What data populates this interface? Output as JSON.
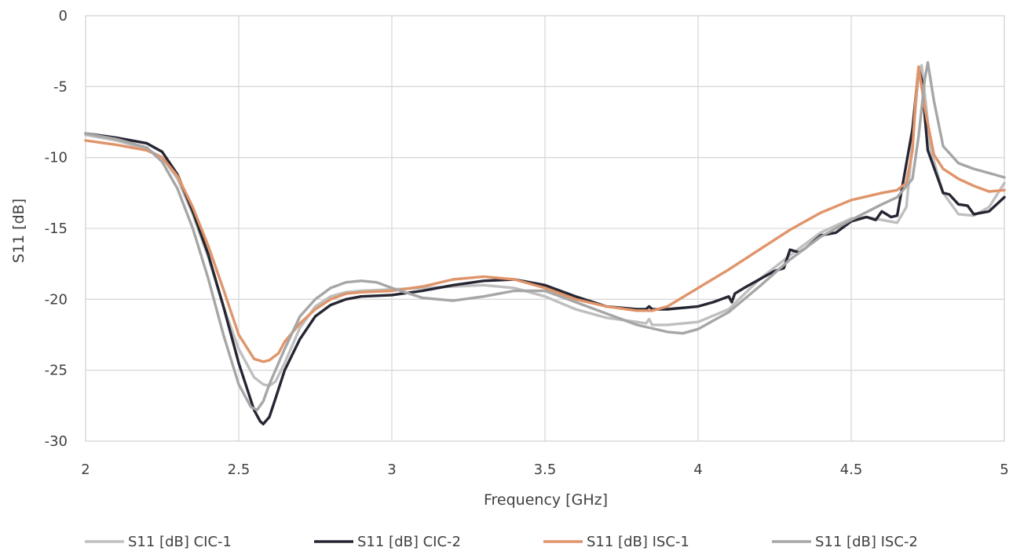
{
  "chart_data": {
    "type": "line",
    "title": "",
    "xlabel": "Frequency [GHz]",
    "ylabel": "S11 [dB]",
    "xlim": [
      2,
      5
    ],
    "ylim": [
      -30,
      0
    ],
    "x_ticks": [
      2,
      2.5,
      3,
      3.5,
      4,
      4.5,
      5
    ],
    "x_tick_labels": [
      "2",
      "2.5",
      "3",
      "3.5",
      "4",
      "4.5",
      "5"
    ],
    "y_ticks": [
      0,
      -5,
      -10,
      -15,
      -20,
      -25,
      -30
    ],
    "y_tick_labels": [
      "0",
      "-5",
      "-10",
      "-15",
      "-20",
      "-25",
      "-30"
    ],
    "grid": true,
    "legend_position": "bottom",
    "series": [
      {
        "name": "S11 [dB] CIC-1",
        "color": "#bfbfbf",
        "x": [
          2.0,
          2.1,
          2.2,
          2.25,
          2.3,
          2.35,
          2.4,
          2.45,
          2.5,
          2.55,
          2.58,
          2.6,
          2.62,
          2.65,
          2.7,
          2.75,
          2.8,
          2.85,
          2.9,
          3.0,
          3.1,
          3.2,
          3.3,
          3.4,
          3.5,
          3.6,
          3.7,
          3.8,
          3.83,
          3.84,
          3.85,
          3.9,
          4.0,
          4.1,
          4.2,
          4.3,
          4.4,
          4.5,
          4.55,
          4.6,
          4.65,
          4.68,
          4.7,
          4.72,
          4.73,
          4.74,
          4.76,
          4.8,
          4.85,
          4.9,
          4.95,
          5.0
        ],
        "y": [
          -8.4,
          -8.8,
          -9.4,
          -10.0,
          -11.5,
          -14.0,
          -17.0,
          -20.5,
          -23.5,
          -25.5,
          -26.0,
          -26.1,
          -25.8,
          -24.5,
          -22.0,
          -20.5,
          -19.8,
          -19.5,
          -19.4,
          -19.3,
          -19.2,
          -19.1,
          -19.0,
          -19.2,
          -19.8,
          -20.7,
          -21.3,
          -21.6,
          -21.7,
          -21.4,
          -21.8,
          -21.8,
          -21.6,
          -20.7,
          -18.6,
          -16.9,
          -15.3,
          -14.3,
          -14.2,
          -14.4,
          -14.6,
          -13.5,
          -9.0,
          -4.0,
          -3.5,
          -5.5,
          -9.5,
          -12.5,
          -14.0,
          -14.1,
          -13.5,
          -11.8
        ]
      },
      {
        "name": "S11 [dB] CIC-2",
        "color": "#262633",
        "x": [
          2.0,
          2.1,
          2.2,
          2.25,
          2.3,
          2.35,
          2.4,
          2.45,
          2.5,
          2.55,
          2.57,
          2.58,
          2.6,
          2.62,
          2.65,
          2.7,
          2.75,
          2.8,
          2.85,
          2.9,
          3.0,
          3.1,
          3.2,
          3.3,
          3.4,
          3.5,
          3.6,
          3.7,
          3.8,
          3.83,
          3.84,
          3.85,
          3.9,
          4.0,
          4.05,
          4.1,
          4.11,
          4.12,
          4.15,
          4.2,
          4.25,
          4.28,
          4.3,
          4.33,
          4.35,
          4.4,
          4.45,
          4.5,
          4.55,
          4.58,
          4.6,
          4.63,
          4.65,
          4.7,
          4.72,
          4.73,
          4.75,
          4.8,
          4.82,
          4.85,
          4.88,
          4.9,
          4.95,
          5.0
        ],
        "y": [
          -8.3,
          -8.6,
          -9.0,
          -9.6,
          -11.2,
          -13.8,
          -16.8,
          -20.5,
          -24.5,
          -27.8,
          -28.6,
          -28.8,
          -28.3,
          -27.0,
          -25.0,
          -22.8,
          -21.2,
          -20.4,
          -20.0,
          -19.8,
          -19.7,
          -19.4,
          -19.0,
          -18.7,
          -18.6,
          -19.0,
          -19.8,
          -20.5,
          -20.7,
          -20.7,
          -20.5,
          -20.7,
          -20.7,
          -20.5,
          -20.2,
          -19.8,
          -20.2,
          -19.6,
          -19.2,
          -18.6,
          -18.0,
          -17.8,
          -16.5,
          -16.7,
          -16.4,
          -15.5,
          -15.3,
          -14.5,
          -14.2,
          -14.4,
          -13.8,
          -14.2,
          -14.1,
          -8.0,
          -3.7,
          -4.5,
          -9.5,
          -12.5,
          -12.6,
          -13.3,
          -13.4,
          -14.0,
          -13.8,
          -12.8
        ]
      },
      {
        "name": "S11 [dB] ISC-1",
        "color": "#e0946a",
        "x": [
          2.0,
          2.1,
          2.2,
          2.25,
          2.3,
          2.35,
          2.4,
          2.45,
          2.5,
          2.55,
          2.58,
          2.6,
          2.63,
          2.65,
          2.7,
          2.75,
          2.8,
          2.85,
          2.9,
          3.0,
          3.1,
          3.2,
          3.3,
          3.4,
          3.5,
          3.6,
          3.7,
          3.8,
          3.85,
          3.9,
          4.0,
          4.1,
          4.2,
          4.3,
          4.4,
          4.5,
          4.6,
          4.65,
          4.68,
          4.7,
          4.71,
          4.72,
          4.74,
          4.77,
          4.8,
          4.85,
          4.9,
          4.95,
          5.0
        ],
        "y": [
          -8.8,
          -9.1,
          -9.5,
          -10.0,
          -11.3,
          -13.5,
          -16.2,
          -19.3,
          -22.5,
          -24.2,
          -24.4,
          -24.3,
          -23.8,
          -23.0,
          -21.7,
          -20.7,
          -20.0,
          -19.6,
          -19.5,
          -19.4,
          -19.1,
          -18.6,
          -18.4,
          -18.6,
          -19.2,
          -20.0,
          -20.5,
          -20.8,
          -20.8,
          -20.5,
          -19.2,
          -17.9,
          -16.5,
          -15.1,
          -13.9,
          -13.0,
          -12.5,
          -12.3,
          -11.8,
          -9.5,
          -6.0,
          -3.6,
          -6.5,
          -9.8,
          -10.8,
          -11.5,
          -12.0,
          -12.4,
          -12.3
        ]
      },
      {
        "name": "S11 [dB] ISC-2",
        "color": "#a6a6a6",
        "x": [
          2.0,
          2.1,
          2.2,
          2.25,
          2.3,
          2.35,
          2.4,
          2.45,
          2.5,
          2.54,
          2.56,
          2.58,
          2.6,
          2.65,
          2.7,
          2.75,
          2.8,
          2.85,
          2.9,
          2.95,
          3.0,
          3.1,
          3.2,
          3.3,
          3.4,
          3.5,
          3.6,
          3.7,
          3.8,
          3.9,
          3.95,
          4.0,
          4.05,
          4.1,
          4.2,
          4.3,
          4.4,
          4.5,
          4.6,
          4.65,
          4.7,
          4.72,
          4.74,
          4.75,
          4.77,
          4.8,
          4.85,
          4.9,
          4.95,
          5.0
        ],
        "y": [
          -8.3,
          -8.7,
          -9.3,
          -10.3,
          -12.2,
          -15.0,
          -18.5,
          -22.5,
          -26.0,
          -27.6,
          -27.8,
          -27.2,
          -26.0,
          -23.5,
          -21.2,
          -20.0,
          -19.2,
          -18.8,
          -18.7,
          -18.8,
          -19.2,
          -19.9,
          -20.1,
          -19.8,
          -19.4,
          -19.4,
          -20.2,
          -21.0,
          -21.8,
          -22.3,
          -22.4,
          -22.1,
          -21.5,
          -20.9,
          -19.1,
          -17.2,
          -15.6,
          -14.4,
          -13.3,
          -12.8,
          -11.5,
          -8.5,
          -4.5,
          -3.3,
          -6.0,
          -9.2,
          -10.4,
          -10.8,
          -11.1,
          -11.4
        ]
      }
    ]
  }
}
